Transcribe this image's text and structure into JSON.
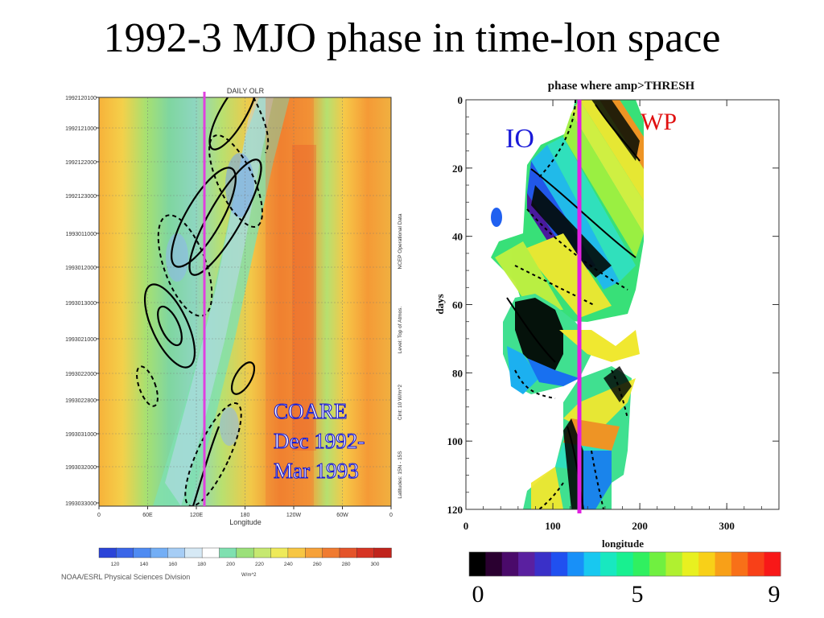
{
  "slide": {
    "title": "1992-3 MJO phase in time-lon space"
  },
  "chart_data": [
    {
      "type": "heatmap",
      "title": "DAILY OLR",
      "xlabel": "Longitude",
      "ylabel": "",
      "x_tick_labels": [
        "0",
        "60E",
        "120E",
        "180",
        "120W",
        "60W",
        "0"
      ],
      "y_tick_labels": [
        "1992120100",
        "1992121000",
        "1992122000",
        "1992123000",
        "1993011000",
        "1993012000",
        "1993013000",
        "1993021000",
        "1993022000",
        "1993022800",
        "1993031000",
        "1993032000",
        "1993033000"
      ],
      "side_notes": [
        "NCEP Operational Data",
        "Level: Top of Atmos.",
        "Cint: 10 W/m^2",
        "Latitudes: 15N - 15S"
      ],
      "colorbar": {
        "ticks": [
          "120",
          "140",
          "160",
          "180",
          "200",
          "220",
          "240",
          "260",
          "280",
          "300"
        ],
        "unit": "W/m^2",
        "colors": [
          "#2b44d8",
          "#3b66e8",
          "#4f8bf2",
          "#73aef5",
          "#a6cdf5",
          "#d6e9f5",
          "#ffffff",
          "#7fe0b0",
          "#9be07a",
          "#c6e870",
          "#eeea5a",
          "#f7c643",
          "#f6a139",
          "#f07b30",
          "#e4542a",
          "#d63424",
          "#c0241c"
        ]
      },
      "credit": "NOAA/ESRL Physical Sciences Division",
      "annotation": [
        "COARE",
        "Dec 1992-",
        "Mar 1993"
      ],
      "marker_line": {
        "x": "120E",
        "color": "#e040e0"
      }
    },
    {
      "type": "heatmap",
      "title": "phase where amp>THRESH",
      "xlabel": "longitude",
      "ylabel": "days",
      "xlim": [
        0,
        360
      ],
      "ylim": [
        0,
        120
      ],
      "x_ticks": [
        0,
        100,
        200,
        300
      ],
      "y_ticks": [
        0,
        20,
        40,
        60,
        80,
        100,
        120
      ],
      "labels": [
        {
          "text": "IO",
          "color": "#1a1ad8"
        },
        {
          "text": "WP",
          "color": "#e01010"
        }
      ],
      "marker_line": {
        "x": 130,
        "color": "#e020e0"
      },
      "colorbar": {
        "ticks": [
          "0",
          "5",
          "9"
        ],
        "colors": [
          "#000000",
          "#2a0030",
          "#4a0a6a",
          "#5a20a0",
          "#3a30c8",
          "#2050f0",
          "#1890f8",
          "#18c8f0",
          "#18e8c0",
          "#18f090",
          "#30f060",
          "#70f040",
          "#b0f030",
          "#e8f020",
          "#f8d018",
          "#f8a018",
          "#f87018",
          "#f84018",
          "#f81818"
        ]
      }
    }
  ]
}
